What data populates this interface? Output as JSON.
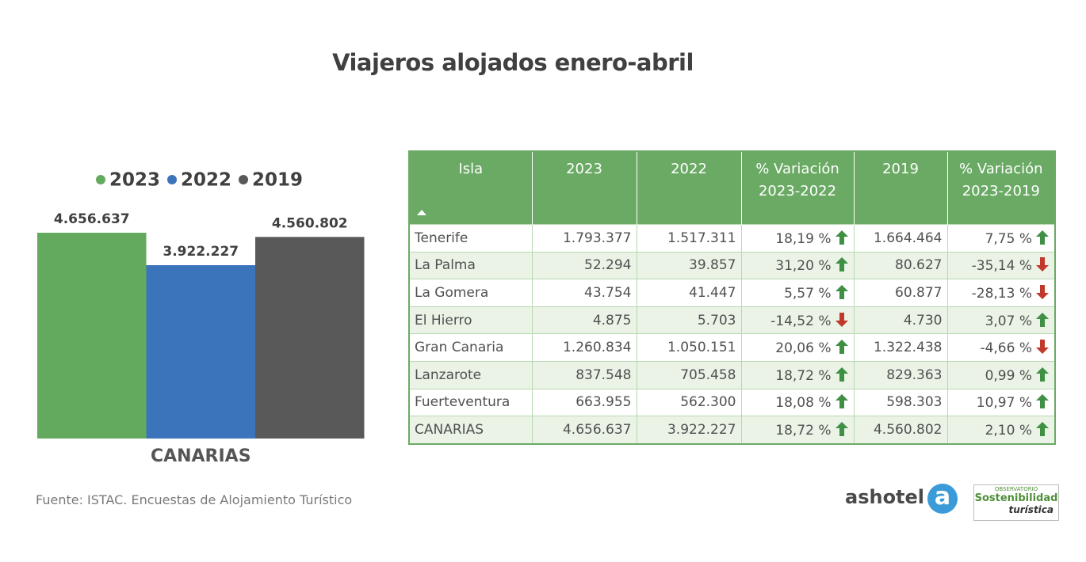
{
  "title": "Viajeros alojados enero-abril",
  "chart_data": {
    "type": "bar",
    "categories": [
      "CANARIAS"
    ],
    "series": [
      {
        "name": "2023",
        "color": "#63aa5f",
        "values": [
          4656637
        ],
        "value_labels": [
          "4.656.637"
        ]
      },
      {
        "name": "2022",
        "color": "#3b74ba",
        "values": [
          3922227
        ],
        "value_labels": [
          "3.922.227"
        ]
      },
      {
        "name": "2019",
        "color": "#595959",
        "values": [
          4560802
        ],
        "value_labels": [
          "4.560.802"
        ]
      }
    ]
  },
  "table": {
    "headers": [
      "Isla",
      "2023",
      "2022",
      "% Variación 2023-2022",
      "2019",
      "% Variación 2023-2019"
    ],
    "rows": [
      [
        "Tenerife",
        "1.793.377",
        "1.517.311",
        "18,19 %",
        "1.664.464",
        "7,75 %"
      ],
      [
        "La Palma",
        "52.294",
        "39.857",
        "31,20 %",
        "80.627",
        "-35,14 %"
      ],
      [
        "La Gomera",
        "43.754",
        "41.447",
        "5,57 %",
        "60.877",
        "-28,13 %"
      ],
      [
        "El Hierro",
        "4.875",
        "5.703",
        "-14,52 %",
        "4.730",
        "3,07 %"
      ],
      [
        "Gran Canaria",
        "1.260.834",
        "1.050.151",
        "20,06 %",
        "1.322.438",
        "-4,66 %"
      ],
      [
        "Lanzarote",
        "837.548",
        "705.458",
        "18,72 %",
        "829.363",
        "0,99 %"
      ],
      [
        "Fuerteventura",
        "663.955",
        "562.300",
        "18,08 %",
        "598.303",
        "10,97 %"
      ],
      [
        "CANARIAS",
        "4.656.637",
        "3.922.227",
        "18,72 %",
        "4.560.802",
        "2,10 %"
      ]
    ]
  },
  "source": "Fuente: ISTAC. Encuestas de Alojamiento Turístico",
  "logos": {
    "ashotel": "ashotel",
    "ashotel_icon": "a",
    "observatorio": "OBSERVATORIO",
    "sostenibilidad": "Sostenibilidad",
    "turistica": "turística"
  }
}
